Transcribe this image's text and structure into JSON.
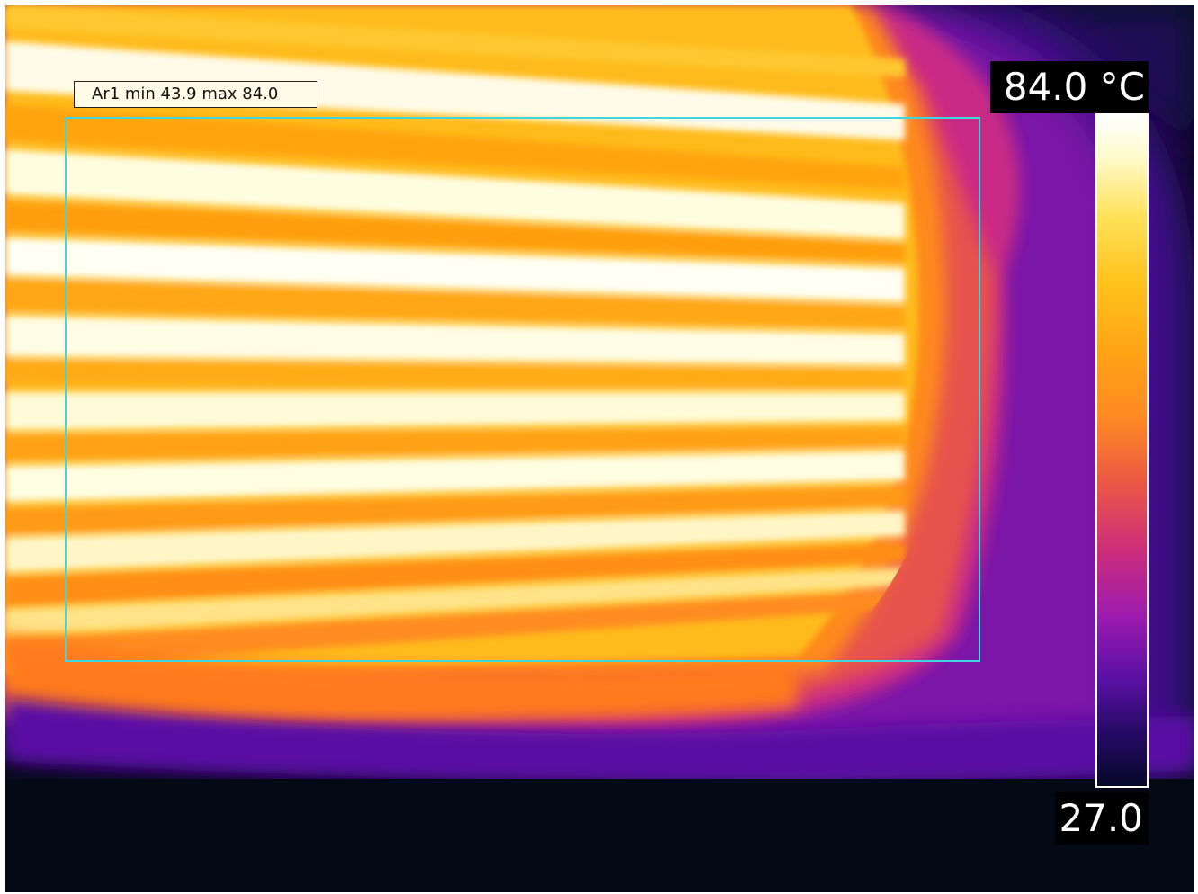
{
  "roi_label": "Ar1 min 43.9 max 84.0",
  "scale": {
    "max_label": "84.0 °C",
    "min_label": "27.0",
    "palette": [
      "#ffffff",
      "#fffbd0",
      "#ffe25a",
      "#ffc21c",
      "#ffa514",
      "#ff8a22",
      "#ea5646",
      "#cc2d7c",
      "#9b1ab0",
      "#5a10a4",
      "#260a66",
      "#07082a"
    ]
  },
  "colors": {
    "roi_box": "#3fd6e0",
    "background": "#050a18"
  }
}
